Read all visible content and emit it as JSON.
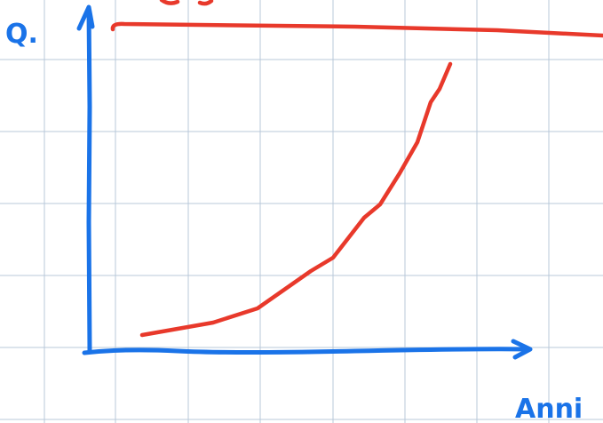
{
  "labels": {
    "y_axis": "Q.",
    "x_axis": "Anni"
  }
}
